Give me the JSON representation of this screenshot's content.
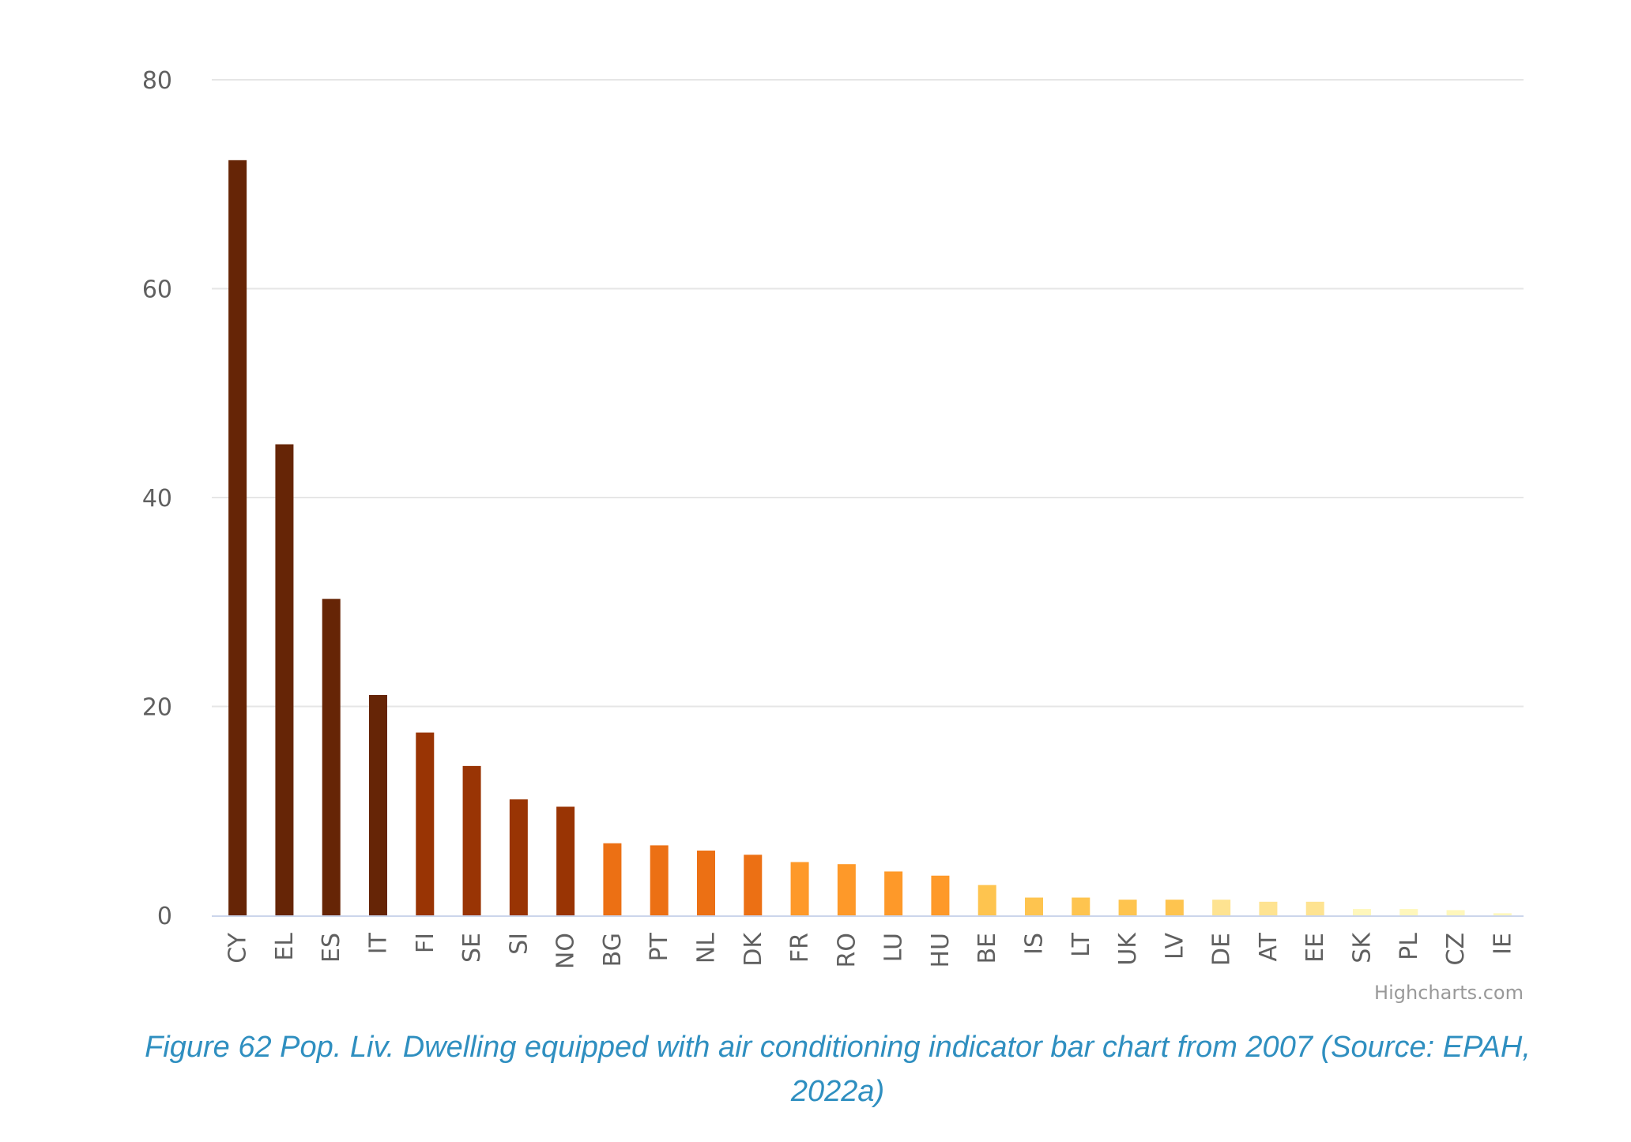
{
  "chart_data": {
    "type": "bar",
    "categories": [
      "CY",
      "EL",
      "ES",
      "IT",
      "FI",
      "SE",
      "SI",
      "NO",
      "BG",
      "PT",
      "NL",
      "DK",
      "FR",
      "RO",
      "LU",
      "HU",
      "BE",
      "IS",
      "LT",
      "UK",
      "LV",
      "DE",
      "AT",
      "EE",
      "SK",
      "PL",
      "CZ",
      "IE"
    ],
    "values": [
      72.3,
      45.1,
      30.3,
      21.1,
      17.5,
      14.3,
      11.1,
      10.4,
      6.9,
      6.7,
      6.2,
      5.8,
      5.1,
      4.9,
      4.2,
      3.8,
      2.9,
      1.7,
      1.7,
      1.5,
      1.5,
      1.5,
      1.3,
      1.3,
      0.6,
      0.6,
      0.5,
      0.2
    ],
    "colors": [
      "#662506",
      "#662506",
      "#662506",
      "#662506",
      "#993404",
      "#993404",
      "#993404",
      "#993404",
      "#ec7014",
      "#ec7014",
      "#ec7014",
      "#ec7014",
      "#fe9929",
      "#fe9929",
      "#fe9929",
      "#fe9929",
      "#fec44f",
      "#fec44f",
      "#fec44f",
      "#fec44f",
      "#fec44f",
      "#fee391",
      "#fee391",
      "#fee391",
      "#fff7bc",
      "#fff7bc",
      "#fff7bc",
      "#fff7bc"
    ],
    "yticks": [
      0,
      20,
      40,
      60,
      80
    ],
    "ylim": [
      0,
      80
    ],
    "grid": true,
    "gridColor": "#e6e6e6",
    "axisColor": "#ccd6eb",
    "credits": "Highcharts.com"
  },
  "caption": "Figure 62 Pop. Liv. Dwelling equipped with air conditioning indicator bar chart from 2007 (Source: EPAH, 2022a)"
}
